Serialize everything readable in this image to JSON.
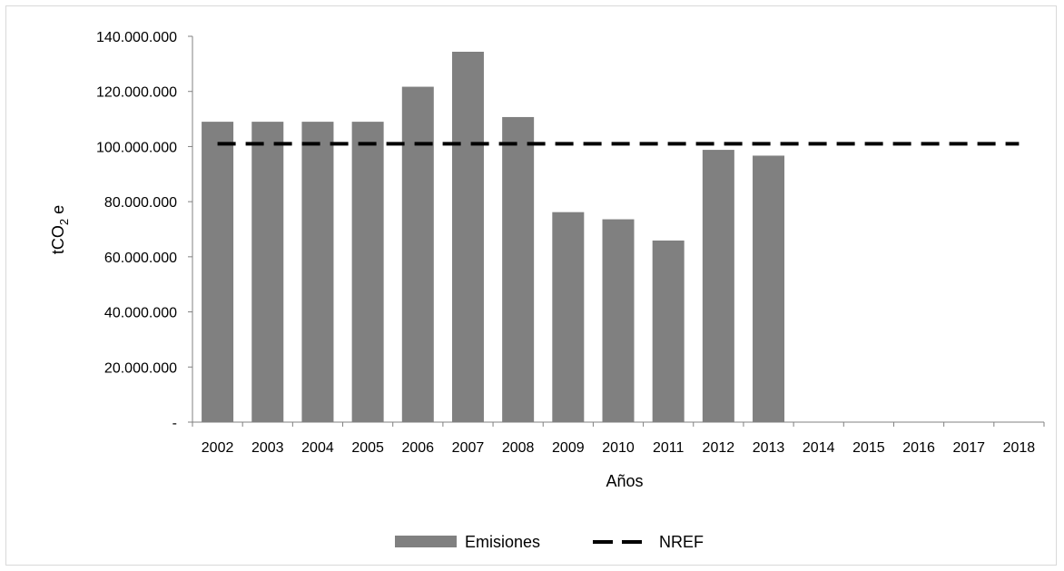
{
  "chart_data": {
    "type": "bar",
    "title": "",
    "xlabel": "Años",
    "ylabel_main": "tCO",
    "ylabel_sub": "2",
    "ylabel_tail": " e",
    "categories": [
      "2002",
      "2003",
      "2004",
      "2005",
      "2006",
      "2007",
      "2008",
      "2009",
      "2010",
      "2011",
      "2012",
      "2013",
      "2014",
      "2015",
      "2016",
      "2017",
      "2018"
    ],
    "series": [
      {
        "name": "Emisiones",
        "type": "bar",
        "color": "#808080",
        "values": [
          109000000,
          109000000,
          109000000,
          109000000,
          121700000,
          134400000,
          110700000,
          76200000,
          73600000,
          65900000,
          98800000,
          96700000,
          null,
          null,
          null,
          null,
          null
        ]
      },
      {
        "name": "NREF",
        "type": "line",
        "style": "dashed",
        "color": "#000000",
        "values": [
          101000000,
          101000000,
          101000000,
          101000000,
          101000000,
          101000000,
          101000000,
          101000000,
          101000000,
          101000000,
          101000000,
          101000000,
          101000000,
          101000000,
          101000000,
          101000000,
          101000000
        ]
      }
    ],
    "ylim": [
      0,
      140000000
    ],
    "yticks": [
      0,
      20000000,
      40000000,
      60000000,
      80000000,
      100000000,
      120000000,
      140000000
    ],
    "ytick_labels": [
      "-",
      "20.000.000",
      "40.000.000",
      "60.000.000",
      "80.000.000",
      "100.000.000",
      "120.000.000",
      "140.000.000"
    ],
    "grid": false,
    "legend_position": "bottom"
  }
}
